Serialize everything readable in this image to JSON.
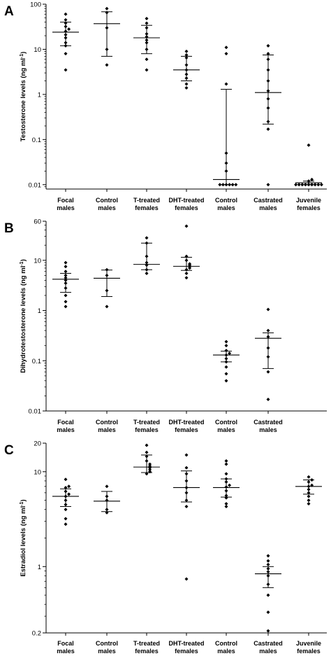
{
  "chart_data": [
    {
      "type": "scatter",
      "panel_label": "A",
      "title": "",
      "ylabel": "Testosterone levels (ng ml",
      "ylabel_sup": "-1",
      "yscale": "log",
      "ylim": [
        0.008,
        100
      ],
      "yticks": [
        0.01,
        0.1,
        1,
        10,
        100
      ],
      "ytick_labels": [
        "0.01",
        "0.1",
        "1",
        "10",
        "100"
      ],
      "categories": [
        [
          "Focal",
          "males"
        ],
        [
          "Control",
          "males"
        ],
        [
          "T-treated",
          "females"
        ],
        [
          "DHT-treated",
          "females"
        ],
        [
          "Control",
          "males"
        ],
        [
          "Castrated",
          "males"
        ],
        [
          "Juvenile",
          "females"
        ]
      ],
      "groups": [
        {
          "median": 24,
          "q1": 12,
          "q3": 40,
          "points": [
            3.5,
            8,
            12,
            14,
            18,
            21,
            25,
            28,
            32,
            38,
            45,
            60
          ]
        },
        {
          "median": 37,
          "q1": 7,
          "q3": 68,
          "points": [
            4.5,
            10,
            30,
            65,
            80
          ]
        },
        {
          "median": 18,
          "q1": 8,
          "q3": 34,
          "points": [
            3.5,
            6,
            10,
            14,
            16,
            19,
            22,
            30,
            38,
            48
          ]
        },
        {
          "median": 3.5,
          "q1": 2,
          "q3": 7,
          "points": [
            1.4,
            1.7,
            2.3,
            2.8,
            3.5,
            4.5,
            6.5,
            7.5,
            9
          ]
        },
        {
          "median": 0.013,
          "q1": 0.01,
          "q3": 1.3,
          "points": [
            0.01,
            0.01,
            0.01,
            0.01,
            0.01,
            0.01,
            0.02,
            0.03,
            0.05,
            1.7,
            8,
            11
          ]
        },
        {
          "median": 1.1,
          "q1": 0.22,
          "q3": 7.5,
          "points": [
            0.01,
            0.17,
            0.25,
            0.5,
            0.8,
            1.2,
            2,
            3.5,
            6,
            8,
            12
          ]
        },
        {
          "median": 0.011,
          "q1": 0.01,
          "q3": 0.012,
          "points": [
            0.01,
            0.01,
            0.01,
            0.01,
            0.01,
            0.01,
            0.01,
            0.01,
            0.01,
            0.012,
            0.013,
            0.075
          ]
        }
      ]
    },
    {
      "type": "scatter",
      "panel_label": "B",
      "title": "",
      "ylabel": "Dihydrotestosterone levels (ng ml",
      "ylabel_sup": "-1",
      "yscale": "log",
      "ylim": [
        0.01,
        60
      ],
      "yticks": [
        0.01,
        0.1,
        1,
        10,
        60
      ],
      "ytick_labels": [
        "0.01",
        "0.1",
        "1",
        "10",
        "60"
      ],
      "categories": [
        [
          "Focal",
          "males"
        ],
        [
          "Control",
          "males"
        ],
        [
          "T-treated",
          "females"
        ],
        [
          "DHT-treated",
          "females"
        ],
        [
          "Control",
          "males"
        ],
        [
          "Castrated",
          "males"
        ]
      ],
      "groups": [
        {
          "median": 4.2,
          "q1": 2.3,
          "q3": 5.5,
          "points": [
            1.2,
            1.5,
            2,
            2.8,
            3.5,
            4,
            4.5,
            5,
            6,
            7.5,
            9
          ]
        },
        {
          "median": 4.4,
          "q1": 1.9,
          "q3": 6.4,
          "points": [
            1.2,
            2.5,
            5,
            6.5
          ]
        },
        {
          "median": 8.3,
          "q1": 6.5,
          "q3": 22,
          "points": [
            5.5,
            6.5,
            8,
            9,
            12,
            22,
            28
          ]
        },
        {
          "median": 7.6,
          "q1": 6.3,
          "q3": 11.5,
          "points": [
            4.5,
            5.5,
            6.5,
            7,
            7.5,
            8,
            8.5,
            10,
            12,
            48
          ]
        },
        {
          "median": 0.13,
          "q1": 0.095,
          "q3": 0.155,
          "points": [
            0.04,
            0.055,
            0.075,
            0.095,
            0.11,
            0.13,
            0.14,
            0.16,
            0.2,
            0.24
          ]
        },
        {
          "median": 0.28,
          "q1": 0.07,
          "q3": 0.36,
          "points": [
            0.017,
            0.06,
            0.12,
            0.18,
            0.3,
            0.4,
            1.05
          ]
        }
      ]
    },
    {
      "type": "scatter",
      "panel_label": "C",
      "title": "",
      "ylabel": "Estradiol levels (ng ml",
      "ylabel_sup": "-1",
      "yscale": "log",
      "ylim": [
        0.2,
        20
      ],
      "yticks": [
        0.2,
        1,
        10,
        20
      ],
      "ytick_labels": [
        "0.2",
        "1",
        "10",
        "20"
      ],
      "categories": [
        [
          "Focal",
          "males"
        ],
        [
          "Control",
          "males"
        ],
        [
          "T-treated",
          "females"
        ],
        [
          "DHT-treated",
          "females"
        ],
        [
          "Control",
          "males"
        ],
        [
          "Castrated",
          "males"
        ],
        [
          "Juvenile",
          "females"
        ]
      ],
      "groups": [
        {
          "median": 5.5,
          "q1": 4.3,
          "q3": 6.6,
          "points": [
            2.8,
            3.2,
            4,
            4.5,
            5,
            5.5,
            5.8,
            6.2,
            6.8,
            7,
            8.3
          ]
        },
        {
          "median": 4.9,
          "q1": 3.8,
          "q3": 6.2,
          "points": [
            3.7,
            4.0,
            5,
            5.5,
            7
          ]
        },
        {
          "median": 11.2,
          "q1": 9.8,
          "q3": 15,
          "points": [
            9.5,
            10,
            10.5,
            11,
            11.5,
            12,
            13,
            14.5,
            16,
            19
          ]
        },
        {
          "median": 6.8,
          "q1": 4.8,
          "q3": 10.2,
          "points": [
            0.74,
            4.3,
            5,
            6,
            6.8,
            8,
            9.5,
            11,
            15
          ]
        },
        {
          "median": 6.8,
          "q1": 5.4,
          "q3": 8.4,
          "points": [
            4.3,
            4.6,
            5.3,
            5.6,
            6.3,
            6.9,
            7.2,
            7.8,
            8.4,
            9.5,
            12,
            13
          ]
        },
        {
          "median": 0.84,
          "q1": 0.6,
          "q3": 1.0,
          "points": [
            0.21,
            0.33,
            0.5,
            0.65,
            0.8,
            0.88,
            0.95,
            1.05,
            1.15,
            1.3
          ]
        },
        {
          "median": 7.0,
          "q1": 5.8,
          "q3": 8.2,
          "points": [
            4.6,
            5,
            5.5,
            6,
            6.5,
            7,
            7.2,
            7.8,
            8.2,
            8.8
          ]
        }
      ]
    }
  ]
}
